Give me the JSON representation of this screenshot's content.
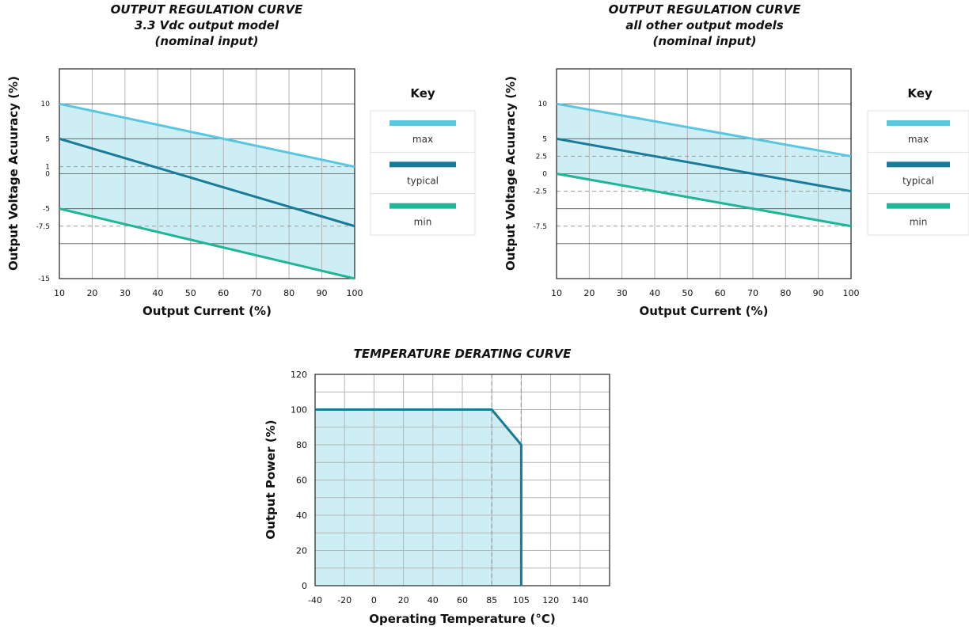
{
  "chart_data": [
    {
      "type": "line",
      "title": [
        "OUTPUT REGULATION CURVE",
        "3.3 Vdc output model",
        "(nominal input)"
      ],
      "xlabel": "Output Current (%)",
      "ylabel": "Output Voltage Acuuracy (%)",
      "xlim": [
        10,
        100
      ],
      "ylim": [
        -15,
        15
      ],
      "x_ticks": [
        10,
        20,
        30,
        40,
        50,
        60,
        70,
        80,
        90,
        100
      ],
      "y_ticks": [
        "10",
        "5",
        "1",
        "0",
        "-5",
        "-7.5",
        "-15"
      ],
      "y_tick_values": [
        10,
        5,
        1,
        0,
        -5,
        -7.5,
        -15
      ],
      "y_grid": [
        15,
        10,
        5,
        0,
        -5,
        -10,
        -15
      ],
      "dashed_y": [
        1,
        -7.5
      ],
      "grid": true,
      "series": [
        {
          "name": "max",
          "color": "#5bc6e0",
          "x": [
            10,
            100
          ],
          "y": [
            10,
            1
          ]
        },
        {
          "name": "typical",
          "color": "#1a7a99",
          "x": [
            10,
            100
          ],
          "y": [
            5,
            -7.5
          ]
        },
        {
          "name": "min",
          "color": "#1fb596",
          "x": [
            10,
            100
          ],
          "y": [
            -5,
            -15
          ]
        }
      ],
      "fill_between": [
        "max",
        "min"
      ],
      "legend": {
        "title": "Key",
        "position": "right",
        "entries": [
          "max",
          "typical",
          "min"
        ]
      }
    },
    {
      "type": "line",
      "title": [
        "OUTPUT REGULATION CURVE",
        "all other output models",
        "(nominal input)"
      ],
      "xlabel": "Output Current (%)",
      "ylabel": "Output Voltage Acuuracy (%)",
      "xlim": [
        10,
        100
      ],
      "ylim": [
        -15,
        15
      ],
      "x_ticks": [
        10,
        20,
        30,
        40,
        50,
        60,
        70,
        80,
        90,
        100
      ],
      "y_ticks": [
        "10",
        "5",
        "2.5",
        "0",
        "-2.5",
        "-7.5"
      ],
      "y_tick_values": [
        10,
        5,
        2.5,
        0,
        -2.5,
        -7.5
      ],
      "y_grid": [
        15,
        10,
        5,
        0,
        -5,
        -10,
        -15
      ],
      "dashed_y": [
        2.5,
        -2.5,
        -7.5
      ],
      "grid": true,
      "series": [
        {
          "name": "max",
          "color": "#5bc6e0",
          "x": [
            10,
            100
          ],
          "y": [
            10,
            2.5
          ]
        },
        {
          "name": "typical",
          "color": "#1a7a99",
          "x": [
            10,
            100
          ],
          "y": [
            5,
            -2.5
          ]
        },
        {
          "name": "min",
          "color": "#1fb596",
          "x": [
            10,
            100
          ],
          "y": [
            0,
            -7.5
          ]
        }
      ],
      "fill_between": [
        "max",
        "min"
      ],
      "legend": {
        "title": "Key",
        "position": "right",
        "entries": [
          "max",
          "typical",
          "min"
        ]
      }
    },
    {
      "type": "area",
      "title": [
        "TEMPERATURE DERATING CURVE"
      ],
      "xlabel": "Operating Temperature (°C)",
      "ylabel": "Output Power (%)",
      "x_ticks": [
        "-40",
        "-20",
        "0",
        "20",
        "40",
        "60",
        "85",
        "105",
        "120",
        "140"
      ],
      "x_grid_count": 10,
      "ylim": [
        0,
        120
      ],
      "y_ticks": [
        0,
        20,
        40,
        60,
        80,
        100,
        120
      ],
      "dashed_x_index": [
        6,
        7
      ],
      "grid": true,
      "series": [
        {
          "name": "",
          "color": "#1a7a99",
          "x": [
            -40,
            85,
            105,
            105
          ],
          "y": [
            100,
            100,
            80,
            0
          ]
        }
      ]
    }
  ]
}
